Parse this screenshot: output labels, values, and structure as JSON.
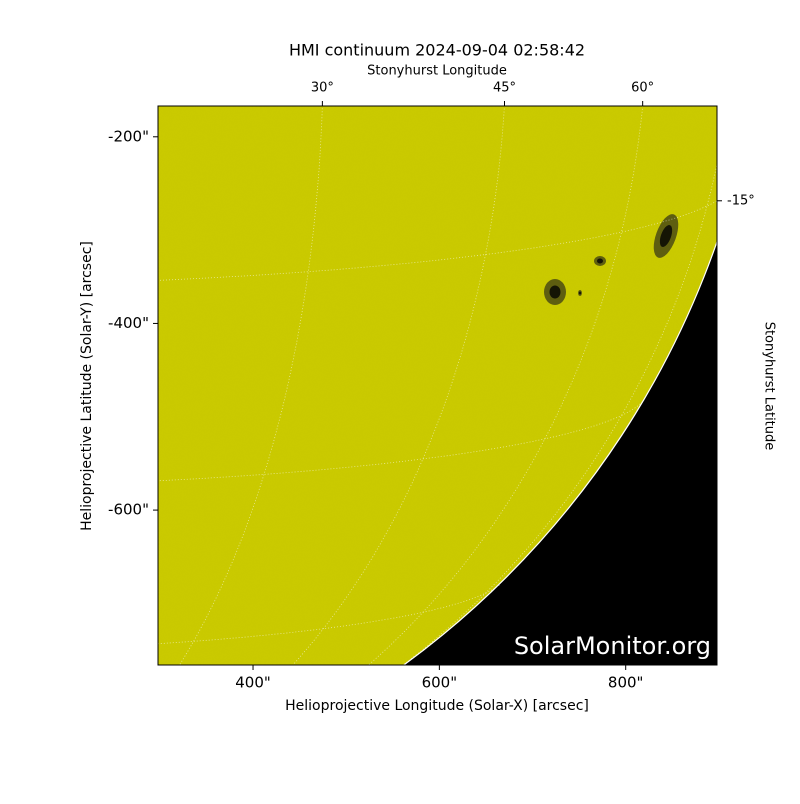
{
  "chart_data": {
    "type": "image",
    "title": "HMI continuum 2024-09-04 02:58:42",
    "x_label": "Helioprojective Longitude (Solar-X) [arcsec]",
    "y_label": "Helioprojective Latitude (Solar-Y) [arcsec]",
    "top_label": "Stonyhurst Longitude",
    "right_label": "Stonyhurst Latitude",
    "watermark": "SolarMonitor.org",
    "xlim": [
      298,
      898
    ],
    "ylim": [
      -766,
      -167
    ],
    "xticks": [
      {
        "value": 400,
        "label": "400\""
      },
      {
        "value": 600,
        "label": "600\""
      },
      {
        "value": 800,
        "label": "800\""
      }
    ],
    "yticks": [
      {
        "value": -200,
        "label": "-200\""
      },
      {
        "value": -400,
        "label": "-400\""
      },
      {
        "value": -600,
        "label": "-600\""
      }
    ],
    "top_ticks": [
      {
        "value": 30,
        "label": "30°"
      },
      {
        "value": 45,
        "label": "45°"
      },
      {
        "value": 60,
        "label": "60°"
      }
    ],
    "right_ticks": [
      {
        "value": -15,
        "label": "-15°"
      }
    ],
    "color": "#c9c900"
  }
}
